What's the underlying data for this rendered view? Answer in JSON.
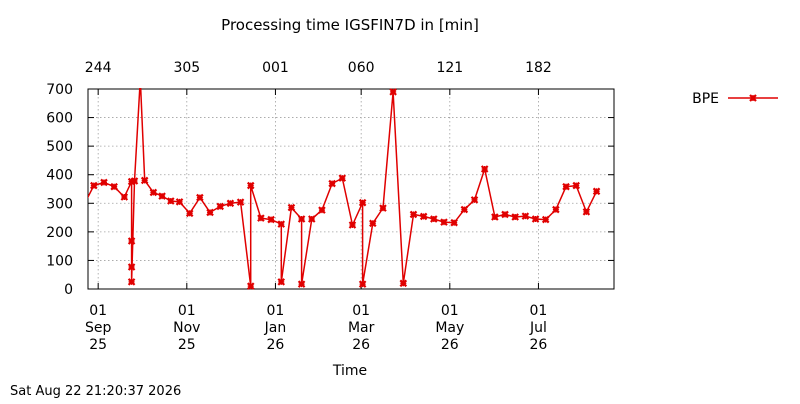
{
  "chart_data": {
    "type": "line",
    "title": "Processing time IGSFIN7D in [min]",
    "xlabel": "Time",
    "ylabel": "",
    "ylim": [
      0,
      700
    ],
    "y_ticks": [
      0,
      100,
      200,
      300,
      400,
      500,
      600,
      700
    ],
    "xlim": [
      "2025-08-25",
      "2026-08-22"
    ],
    "grid": true,
    "legend_position": "top-right outside",
    "x_ticks_bottom": [
      {
        "date": "2025-09-01",
        "label": [
          "01",
          "Sep",
          "25"
        ]
      },
      {
        "date": "2025-11-01",
        "label": [
          "01",
          "Nov",
          "25"
        ]
      },
      {
        "date": "2026-01-01",
        "label": [
          "01",
          "Jan",
          "26"
        ]
      },
      {
        "date": "2026-03-01",
        "label": [
          "01",
          "Mar",
          "26"
        ]
      },
      {
        "date": "2026-05-01",
        "label": [
          "01",
          "May",
          "26"
        ]
      },
      {
        "date": "2026-07-01",
        "label": [
          "01",
          "Jul",
          "26"
        ]
      }
    ],
    "x_ticks_top": [
      {
        "date": "2025-09-01",
        "label": "244"
      },
      {
        "date": "2025-11-01",
        "label": "305"
      },
      {
        "date": "2026-01-01",
        "label": "001"
      },
      {
        "date": "2026-03-01",
        "label": "060"
      },
      {
        "date": "2026-05-01",
        "label": "121"
      },
      {
        "date": "2026-07-01",
        "label": "182"
      }
    ],
    "series": [
      {
        "name": "BPE",
        "color": "#e00000",
        "marker": "x",
        "points": [
          [
            "2025-08-22",
            292
          ],
          [
            "2025-08-29",
            362
          ],
          [
            "2025-09-05",
            373
          ],
          [
            "2025-09-12",
            358
          ],
          [
            "2025-09-19",
            322
          ],
          [
            "2025-09-24",
            376
          ],
          [
            "2025-09-24",
            168
          ],
          [
            "2025-09-24",
            77
          ],
          [
            "2025-09-24",
            25
          ],
          [
            "2025-09-26",
            378
          ],
          [
            "2025-09-30",
            735
          ],
          [
            "2025-10-03",
            380
          ],
          [
            "2025-10-09",
            338
          ],
          [
            "2025-10-15",
            325
          ],
          [
            "2025-10-21",
            308
          ],
          [
            "2025-10-27",
            305
          ],
          [
            "2025-11-03",
            265
          ],
          [
            "2025-11-10",
            320
          ],
          [
            "2025-11-17",
            268
          ],
          [
            "2025-11-24",
            289
          ],
          [
            "2025-12-01",
            300
          ],
          [
            "2025-12-08",
            304
          ],
          [
            "2025-12-15",
            10
          ],
          [
            "2025-12-15",
            362
          ],
          [
            "2025-12-22",
            248
          ],
          [
            "2025-12-29",
            243
          ],
          [
            "2026-01-05",
            227
          ],
          [
            "2026-01-05",
            25
          ],
          [
            "2026-01-12",
            285
          ],
          [
            "2026-01-19",
            245
          ],
          [
            "2026-01-19",
            17
          ],
          [
            "2026-01-26",
            245
          ],
          [
            "2026-02-02",
            276
          ],
          [
            "2026-02-09",
            369
          ],
          [
            "2026-02-16",
            388
          ],
          [
            "2026-02-23",
            224
          ],
          [
            "2026-03-02",
            302
          ],
          [
            "2026-03-02",
            17
          ],
          [
            "2026-03-09",
            230
          ],
          [
            "2026-03-16",
            283
          ],
          [
            "2026-03-23",
            690
          ],
          [
            "2026-03-30",
            20
          ],
          [
            "2026-04-06",
            261
          ],
          [
            "2026-04-13",
            254
          ],
          [
            "2026-04-20",
            245
          ],
          [
            "2026-04-27",
            234
          ],
          [
            "2026-05-04",
            232
          ],
          [
            "2026-05-11",
            278
          ],
          [
            "2026-05-18",
            312
          ],
          [
            "2026-05-25",
            420
          ],
          [
            "2026-06-01",
            252
          ],
          [
            "2026-06-08",
            261
          ],
          [
            "2026-06-15",
            252
          ],
          [
            "2026-06-22",
            255
          ],
          [
            "2026-06-29",
            245
          ],
          [
            "2026-07-06",
            243
          ],
          [
            "2026-07-13",
            278
          ],
          [
            "2026-07-20",
            358
          ],
          [
            "2026-07-27",
            362
          ],
          [
            "2026-08-03",
            270
          ],
          [
            "2026-08-10",
            342
          ]
        ]
      }
    ]
  },
  "footer": {
    "timestamp": "Sat Aug 22 21:20:37 2026"
  }
}
